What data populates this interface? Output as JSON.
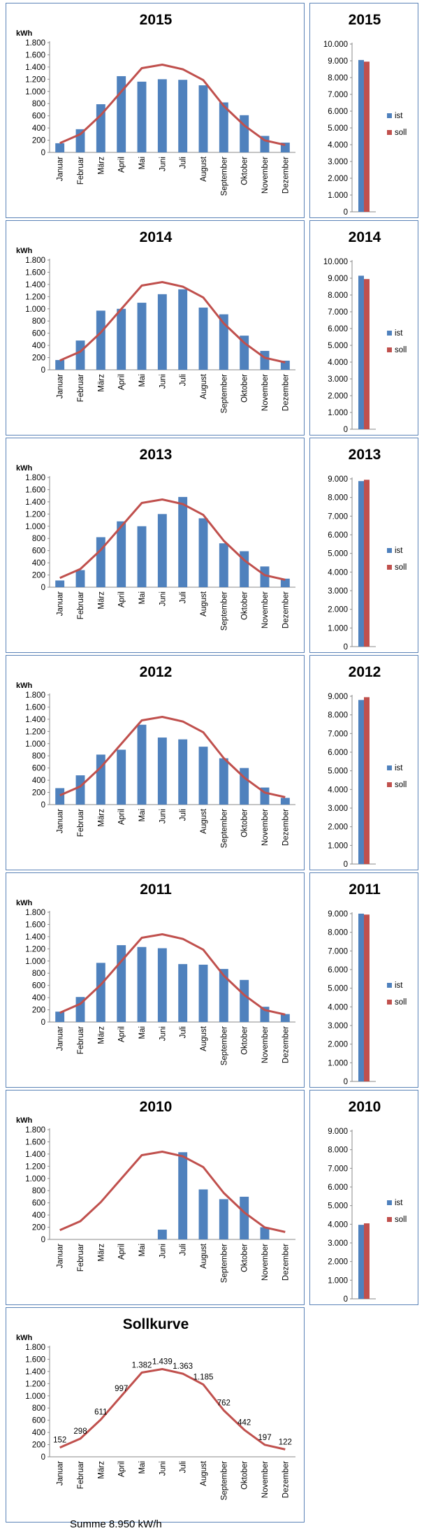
{
  "unit": "kWh",
  "months": [
    "Januar",
    "Februar",
    "März",
    "April",
    "Mai",
    "Juni",
    "Juli",
    "August",
    "September",
    "Oktober",
    "November",
    "Dezember"
  ],
  "soll_curve": [
    152,
    298,
    611,
    997,
    1382,
    1439,
    1363,
    1185,
    762,
    442,
    197,
    122
  ],
  "colors": {
    "ist": "#4f81bd",
    "soll": "#c0504d",
    "panel_border": "#5b83b7"
  },
  "chart_data": [
    {
      "type": "bar",
      "title": "2015",
      "ylabel": "kWh",
      "ylim": [
        0,
        1800
      ],
      "ytick_step": 200,
      "categories": [
        "Januar",
        "Februar",
        "März",
        "April",
        "Mai",
        "Juni",
        "Juli",
        "August",
        "September",
        "Oktober",
        "November",
        "Dezember"
      ],
      "series": [
        {
          "name": "",
          "type": "bar",
          "values": [
            150,
            380,
            790,
            1250,
            1160,
            1200,
            1190,
            1100,
            820,
            610,
            270,
            160
          ]
        },
        {
          "name": "",
          "type": "line",
          "values": [
            152,
            298,
            611,
            997,
            1382,
            1439,
            1363,
            1185,
            762,
            442,
            197,
            122
          ]
        }
      ]
    },
    {
      "type": "bar",
      "title": "2015",
      "ylim": [
        0,
        10000
      ],
      "ytick_step": 1000,
      "legend": "right",
      "series": [
        {
          "name": "ist",
          "values": [
            9050
          ]
        },
        {
          "name": "soll",
          "values": [
            8950
          ]
        }
      ]
    },
    {
      "type": "bar",
      "title": "2014",
      "ylabel": "kWh",
      "ylim": [
        0,
        1800
      ],
      "ytick_step": 200,
      "categories": [
        "Januar",
        "Februar",
        "März",
        "April",
        "Mai",
        "Juni",
        "Juli",
        "August",
        "September",
        "Oktober",
        "November",
        "Dezember"
      ],
      "series": [
        {
          "name": "",
          "type": "bar",
          "values": [
            160,
            480,
            970,
            1000,
            1100,
            1240,
            1320,
            1020,
            910,
            560,
            310,
            150
          ]
        },
        {
          "name": "",
          "type": "line",
          "values": [
            152,
            298,
            611,
            997,
            1382,
            1439,
            1363,
            1185,
            762,
            442,
            197,
            122
          ]
        }
      ]
    },
    {
      "type": "bar",
      "title": "2014",
      "ylim": [
        0,
        10000
      ],
      "ytick_step": 1000,
      "legend": "right",
      "series": [
        {
          "name": "ist",
          "values": [
            9150
          ]
        },
        {
          "name": "soll",
          "values": [
            8950
          ]
        }
      ]
    },
    {
      "type": "bar",
      "title": "2013",
      "ylabel": "kWh",
      "ylim": [
        0,
        1800
      ],
      "ytick_step": 200,
      "categories": [
        "Januar",
        "Februar",
        "März",
        "April",
        "Mai",
        "Juni",
        "Juli",
        "August",
        "September",
        "Oktober",
        "November",
        "Dezember"
      ],
      "series": [
        {
          "name": "",
          "type": "bar",
          "values": [
            110,
            280,
            820,
            1080,
            1000,
            1200,
            1480,
            1130,
            720,
            590,
            340,
            140
          ]
        },
        {
          "name": "",
          "type": "line",
          "values": [
            152,
            298,
            611,
            997,
            1382,
            1439,
            1363,
            1185,
            762,
            442,
            197,
            122
          ]
        }
      ]
    },
    {
      "type": "bar",
      "title": "2013",
      "ylim": [
        0,
        9000
      ],
      "ytick_step": 1000,
      "legend": "right",
      "series": [
        {
          "name": "ist",
          "values": [
            8880
          ]
        },
        {
          "name": "soll",
          "values": [
            8950
          ]
        }
      ]
    },
    {
      "type": "bar",
      "title": "2012",
      "ylabel": "kWh",
      "ylim": [
        0,
        1800
      ],
      "ytick_step": 200,
      "categories": [
        "Januar",
        "Februar",
        "März",
        "April",
        "Mai",
        "Juni",
        "Juli",
        "August",
        "September",
        "Oktober",
        "November",
        "Dezember"
      ],
      "series": [
        {
          "name": "",
          "type": "bar",
          "values": [
            270,
            480,
            820,
            900,
            1310,
            1100,
            1070,
            950,
            760,
            600,
            280,
            110
          ]
        },
        {
          "name": "",
          "type": "line",
          "values": [
            152,
            298,
            611,
            997,
            1382,
            1439,
            1363,
            1185,
            762,
            442,
            197,
            122
          ]
        }
      ]
    },
    {
      "type": "bar",
      "title": "2012",
      "ylim": [
        0,
        9000
      ],
      "ytick_step": 1000,
      "legend": "right",
      "series": [
        {
          "name": "ist",
          "values": [
            8800
          ]
        },
        {
          "name": "soll",
          "values": [
            8950
          ]
        }
      ]
    },
    {
      "type": "bar",
      "title": "2011",
      "ylabel": "kWh",
      "ylim": [
        0,
        1800
      ],
      "ytick_step": 200,
      "categories": [
        "Januar",
        "Februar",
        "März",
        "April",
        "Mai",
        "Juni",
        "Juli",
        "August",
        "September",
        "Oktober",
        "November",
        "Dezember"
      ],
      "series": [
        {
          "name": "",
          "type": "bar",
          "values": [
            170,
            410,
            970,
            1260,
            1230,
            1210,
            950,
            940,
            870,
            690,
            250,
            130
          ]
        },
        {
          "name": "",
          "type": "line",
          "values": [
            152,
            298,
            611,
            997,
            1382,
            1439,
            1363,
            1185,
            762,
            442,
            197,
            122
          ]
        }
      ]
    },
    {
      "type": "bar",
      "title": "2011",
      "ylim": [
        0,
        9000
      ],
      "ytick_step": 1000,
      "legend": "right",
      "series": [
        {
          "name": "ist",
          "values": [
            9000
          ]
        },
        {
          "name": "soll",
          "values": [
            8950
          ]
        }
      ]
    },
    {
      "type": "bar",
      "title": "2010",
      "ylabel": "kWh",
      "ylim": [
        0,
        1800
      ],
      "ytick_step": 200,
      "categories": [
        "Januar",
        "Februar",
        "März",
        "April",
        "Mai",
        "Juni",
        "Juli",
        "August",
        "September",
        "Oktober",
        "November",
        "Dezember"
      ],
      "series": [
        {
          "name": "",
          "type": "bar",
          "values": [
            0,
            0,
            0,
            0,
            0,
            160,
            1430,
            820,
            660,
            700,
            200,
            0
          ]
        },
        {
          "name": "",
          "type": "line",
          "values": [
            152,
            298,
            611,
            997,
            1382,
            1439,
            1363,
            1185,
            762,
            442,
            197,
            122
          ]
        }
      ]
    },
    {
      "type": "bar",
      "title": "2010",
      "ylim": [
        0,
        9000
      ],
      "ytick_step": 1000,
      "legend": "right",
      "series": [
        {
          "name": "ist",
          "values": [
            3970
          ]
        },
        {
          "name": "soll",
          "values": [
            4050
          ]
        }
      ]
    },
    {
      "type": "line",
      "title": "Sollkurve",
      "ylabel": "kWh",
      "ylim": [
        0,
        1800
      ],
      "ytick_step": 200,
      "categories": [
        "Januar",
        "Februar",
        "März",
        "April",
        "Mai",
        "Juni",
        "Juli",
        "August",
        "September",
        "Oktober",
        "November",
        "Dezember"
      ],
      "data_labels": [
        "152",
        "298",
        "611",
        "997",
        "1.382",
        "1.439",
        "1.363",
        "1.185",
        "762",
        "442",
        "197",
        "122"
      ],
      "series": [
        {
          "name": "",
          "type": "line",
          "values": [
            152,
            298,
            611,
            997,
            1382,
            1439,
            1363,
            1185,
            762,
            442,
            197,
            122
          ]
        }
      ]
    }
  ],
  "footer": {
    "summe": "Summe 8.950 kW/h"
  }
}
